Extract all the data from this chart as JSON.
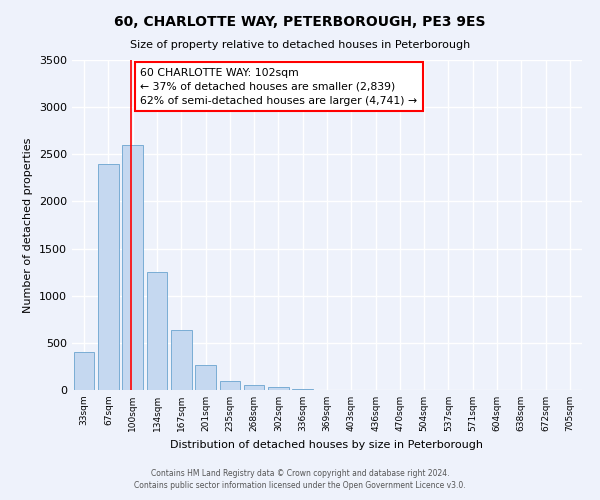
{
  "title": "60, CHARLOTTE WAY, PETERBOROUGH, PE3 9ES",
  "subtitle": "Size of property relative to detached houses in Peterborough",
  "xlabel": "Distribution of detached houses by size in Peterborough",
  "ylabel": "Number of detached properties",
  "annotation_box_text": "60 CHARLOTTE WAY: 102sqm\n← 37% of detached houses are smaller (2,839)\n62% of semi-detached houses are larger (4,741) →",
  "ylim": [
    0,
    3500
  ],
  "yticks": [
    0,
    500,
    1000,
    1500,
    2000,
    2500,
    3000,
    3500
  ],
  "footer_line1": "Contains HM Land Registry data © Crown copyright and database right 2024.",
  "footer_line2": "Contains public sector information licensed under the Open Government Licence v3.0.",
  "background_color": "#eef2fb",
  "grid_color": "#ffffff",
  "bar_color": "#c5d8f0",
  "bar_edge_color": "#7aadd4",
  "all_labels": [
    "33sqm",
    "67sqm",
    "100sqm",
    "134sqm",
    "167sqm",
    "201sqm",
    "235sqm",
    "268sqm",
    "302sqm",
    "336sqm",
    "369sqm",
    "403sqm",
    "436sqm",
    "470sqm",
    "504sqm",
    "537sqm",
    "571sqm",
    "604sqm",
    "638sqm",
    "672sqm",
    "705sqm"
  ],
  "all_values": [
    400,
    2400,
    2600,
    1250,
    640,
    260,
    100,
    55,
    30,
    10,
    0,
    0,
    0,
    0,
    0,
    0,
    0,
    0,
    0,
    0,
    0
  ],
  "red_line_index": 2
}
